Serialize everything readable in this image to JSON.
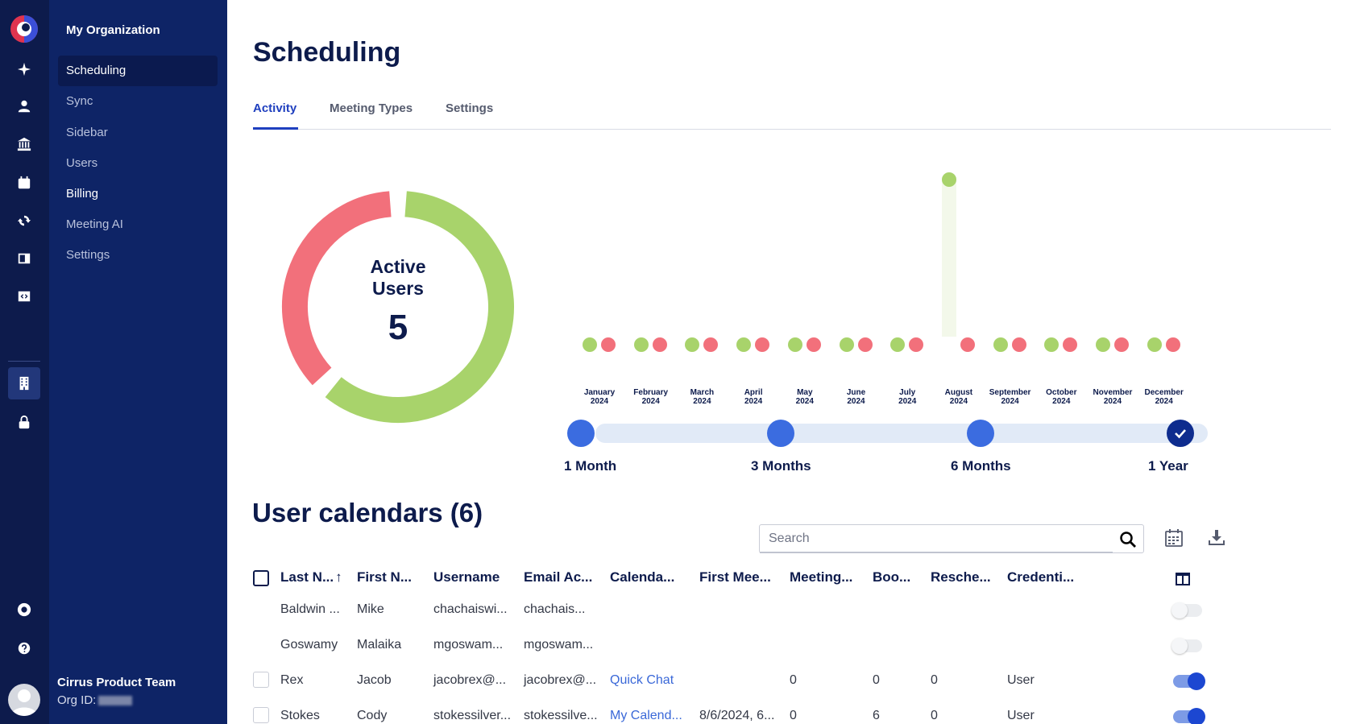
{
  "rail": {
    "icons": [
      "logo-icon",
      "sparkle-icon",
      "user-icon",
      "bank-icon",
      "calendar-icon",
      "sync-icon",
      "sidebar-icon",
      "code-icon",
      "building-icon",
      "lock-icon",
      "lifebuoy-icon",
      "help-icon"
    ]
  },
  "nav": {
    "org_name": "My Organization",
    "items": [
      {
        "label": "Scheduling"
      },
      {
        "label": "Sync"
      },
      {
        "label": "Sidebar"
      },
      {
        "label": "Users"
      },
      {
        "label": "Billing"
      },
      {
        "label": "Meeting AI"
      },
      {
        "label": "Settings"
      }
    ],
    "team_name": "Cirrus Product Team",
    "org_id_label": "Org ID:"
  },
  "page": {
    "title": "Scheduling",
    "tabs": [
      {
        "label": "Activity"
      },
      {
        "label": "Meeting Types"
      },
      {
        "label": "Settings"
      }
    ]
  },
  "donut": {
    "label_line1": "Active",
    "label_line2": "Users",
    "value": "5",
    "active_fraction": 0.62,
    "colors": {
      "active": "#a8d36b",
      "inactive": "#f2707b"
    }
  },
  "timeline": {
    "months": [
      {
        "month": "January",
        "year": "2024",
        "highlight": 0
      },
      {
        "month": "February",
        "year": "2024",
        "highlight": 0
      },
      {
        "month": "March",
        "year": "2024",
        "highlight": 0
      },
      {
        "month": "April",
        "year": "2024",
        "highlight": 0
      },
      {
        "month": "May",
        "year": "2024",
        "highlight": 0
      },
      {
        "month": "June",
        "year": "2024",
        "highlight": 0
      },
      {
        "month": "July",
        "year": "2024",
        "highlight": 0
      },
      {
        "month": "August",
        "year": "2024",
        "highlight": 1
      },
      {
        "month": "September",
        "year": "2024",
        "highlight": 0
      },
      {
        "month": "October",
        "year": "2024",
        "highlight": 0
      },
      {
        "month": "November",
        "year": "2024",
        "highlight": 0
      },
      {
        "month": "December",
        "year": "2024",
        "highlight": 0
      }
    ],
    "ranges": [
      "1 Month",
      "3 Months",
      "6 Months",
      "1 Year"
    ],
    "selected_range": "1 Year"
  },
  "calendars": {
    "title": "User calendars (6)",
    "search_placeholder": "Search",
    "columns": [
      "Last N...",
      "First N...",
      "Username",
      "Email Ac...",
      "Calenda...",
      "First Mee...",
      "Meeting...",
      "Boo...",
      "Resche...",
      "Credenti..."
    ],
    "rows": [
      {
        "last": "Baldwin ...",
        "first": "Mike",
        "username": "chachaiswi...",
        "email": "chachais...",
        "calendar": "",
        "first_meeting": "",
        "meetings": "",
        "booked": "",
        "rescheduled": "",
        "credential": "",
        "enabled": false,
        "checkbox": false
      },
      {
        "last": "Goswamy",
        "first": "Malaika",
        "username": "mgoswam...",
        "email": "mgoswam...",
        "calendar": "",
        "first_meeting": "",
        "meetings": "",
        "booked": "",
        "rescheduled": "",
        "credential": "",
        "enabled": false,
        "checkbox": false
      },
      {
        "last": "Rex",
        "first": "Jacob",
        "username": "jacobrex@...",
        "email": "jacobrex@...",
        "calendar": "Quick Chat",
        "first_meeting": "",
        "meetings": "0",
        "booked": "0",
        "rescheduled": "0",
        "credential": "User",
        "enabled": true,
        "checkbox": true
      },
      {
        "last": "Stokes",
        "first": "Cody",
        "username": "stokessilver...",
        "email": "stokessilve...",
        "calendar": "My Calend...",
        "first_meeting": "8/6/2024, 6...",
        "meetings": "0",
        "booked": "6",
        "rescheduled": "0",
        "credential": "User",
        "enabled": true,
        "checkbox": true
      }
    ]
  }
}
